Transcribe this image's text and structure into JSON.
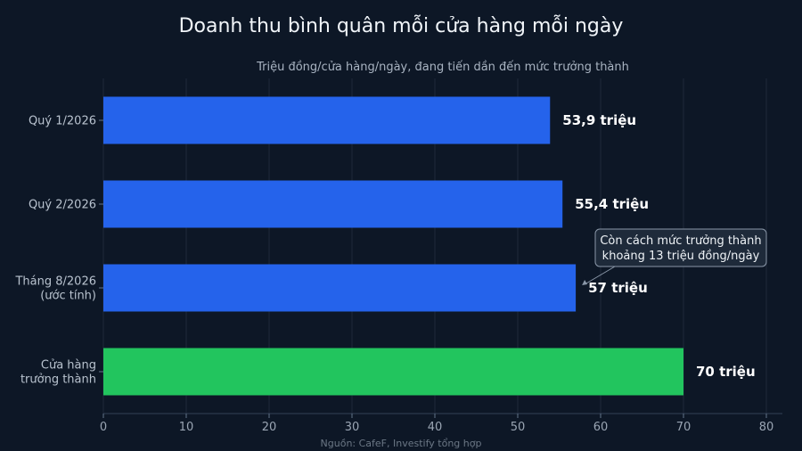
{
  "chart_data": {
    "type": "bar",
    "orientation": "horizontal",
    "title": "Doanh thu bình quân mỗi cửa hàng mỗi ngày",
    "subtitle": "Triệu đồng/cửa hàng/ngày, đang tiến dần đến mức trưởng thành",
    "categories": [
      [
        "Quý 1/2026"
      ],
      [
        "Quý 2/2026"
      ],
      [
        "Tháng 8/2026",
        "(ước tính)"
      ],
      [
        "Cửa hàng",
        "trưởng thành"
      ]
    ],
    "values": [
      53.9,
      55.4,
      57,
      70
    ],
    "value_labels": [
      "53,9 triệu",
      "55,4 triệu",
      "57 triệu",
      "70 triệu"
    ],
    "bar_colors": [
      "#2563eb",
      "#2563eb",
      "#2563eb",
      "#22c55e"
    ],
    "xlim": [
      0,
      80
    ],
    "xticks": [
      0,
      10,
      20,
      30,
      40,
      50,
      60,
      70,
      80
    ],
    "grid": true,
    "annotation": {
      "lines": [
        "Còn cách mức trưởng thành",
        "khoảng 13 triệu đồng/ngày"
      ],
      "target_index": 2
    },
    "source": "Nguồn: CafeF, Investify tổng hợp"
  },
  "colors": {
    "background": "#0d1726",
    "grid": "#1e293b",
    "axis": "#334155",
    "annotation_box": "#1e2a3a",
    "annotation_border": "#8a97a8"
  }
}
